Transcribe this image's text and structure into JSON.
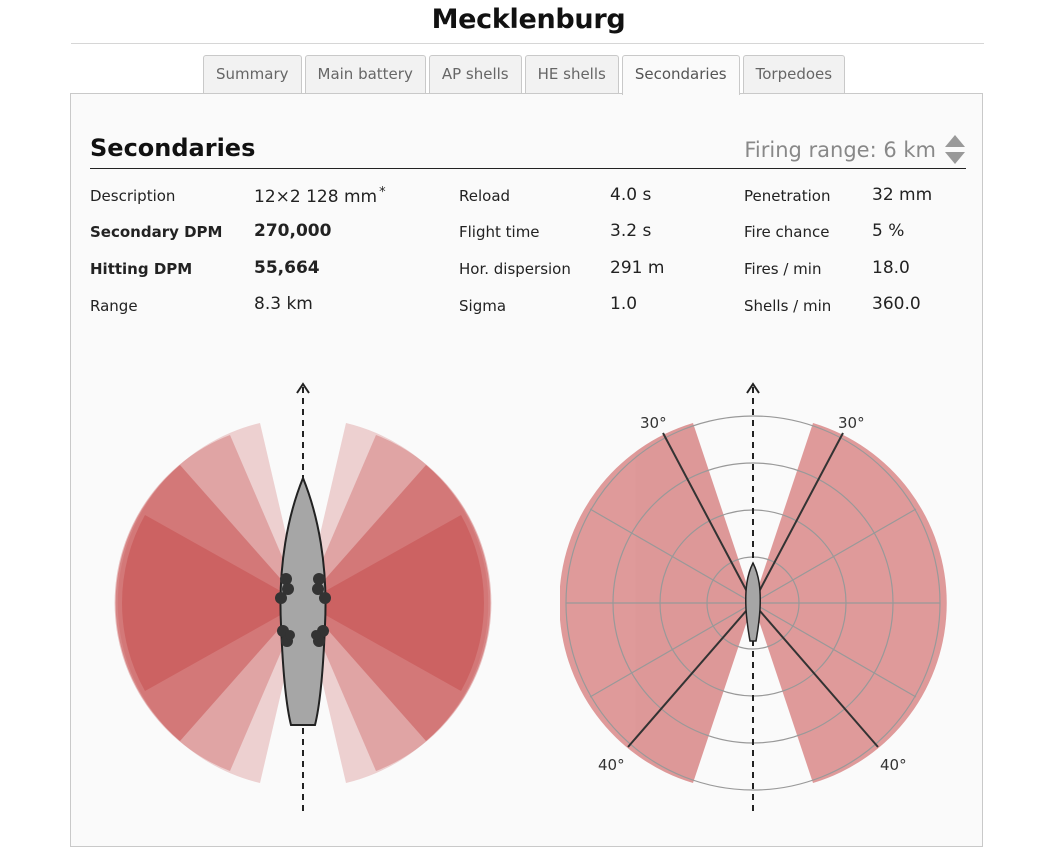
{
  "page": {
    "title": "Mecklenburg"
  },
  "tabs": [
    {
      "label": "Summary"
    },
    {
      "label": "Main battery"
    },
    {
      "label": "AP shells"
    },
    {
      "label": "HE shells"
    },
    {
      "label": "Secondaries",
      "active": true
    },
    {
      "label": "Torpedoes"
    }
  ],
  "section": {
    "title": "Secondaries",
    "firing_range_label": "Firing range: 6 km"
  },
  "stats": {
    "col1": [
      {
        "label": "Description",
        "value": "12×2 128 mm",
        "note": "*"
      },
      {
        "label": "Secondary DPM",
        "value": "270,000",
        "bold": true
      },
      {
        "label": "Hitting DPM",
        "value": "55,664",
        "bold": true
      },
      {
        "label": "Range",
        "value": "8.3 km"
      }
    ],
    "col2": [
      {
        "label": "Reload",
        "value": "4.0 s"
      },
      {
        "label": "Flight time",
        "value": "3.2 s"
      },
      {
        "label": "Hor. dispersion",
        "value": "291 m"
      },
      {
        "label": "Sigma",
        "value": "1.0"
      }
    ],
    "col3": [
      {
        "label": "Penetration",
        "value": "32 mm"
      },
      {
        "label": "Fire chance",
        "value": "5 %"
      },
      {
        "label": "Fires / min",
        "value": "18.0"
      },
      {
        "label": "Shells / min",
        "value": "360.0"
      }
    ]
  },
  "polar": {
    "angle_labels": {
      "top_left": "30°",
      "top_right": "30°",
      "bottom_left": "40°",
      "bottom_right": "40°"
    }
  },
  "colors": {
    "arc": "#c85454",
    "ship_fill": "#a6a6a6",
    "polar_fill": "#d98888",
    "grid": "#999999"
  }
}
